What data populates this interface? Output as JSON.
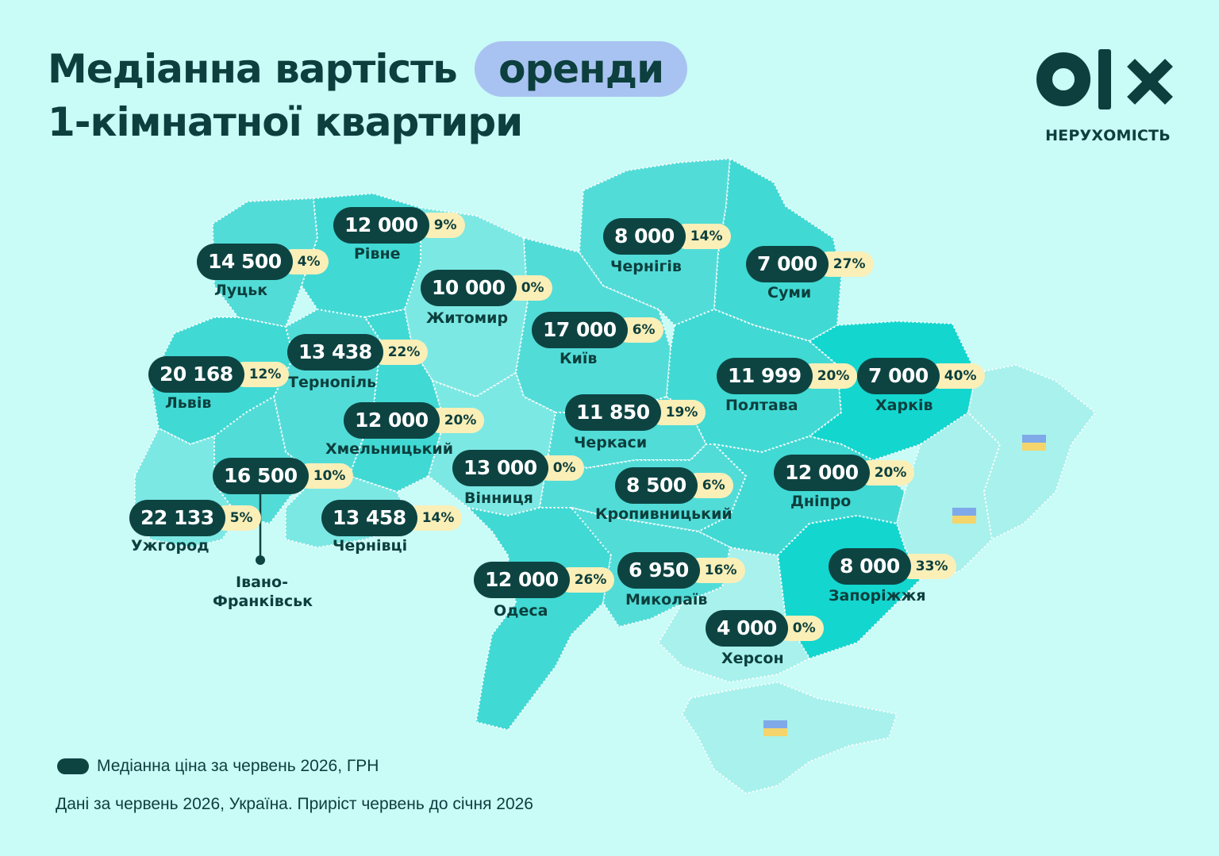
{
  "title": {
    "line1": "Медіанна вартість",
    "highlight": "оренди",
    "line2": "1-кімнатної квартири"
  },
  "logo": {
    "name": "olx-logo",
    "subtitle": "НЕРУХОМІСТЬ"
  },
  "colors": {
    "background": "#c9fbf7",
    "pill": "#0d4442",
    "pct_badge": "#fbefb8",
    "highlight": "#a8c3f1",
    "accent_text": "#0c3f3d"
  },
  "cities": [
    {
      "name": "Луцьк",
      "price": "14 500",
      "change": "4%"
    },
    {
      "name": "Рівне",
      "price": "12 000",
      "change": "9%"
    },
    {
      "name": "Житомир",
      "price": "10 000",
      "change": "0%"
    },
    {
      "name": "Київ",
      "price": "17 000",
      "change": "6%"
    },
    {
      "name": "Чернігів",
      "price": "8 000",
      "change": "14%"
    },
    {
      "name": "Суми",
      "price": "7 000",
      "change": "27%"
    },
    {
      "name": "Львів",
      "price": "20 168",
      "change": "12%"
    },
    {
      "name": "Тернопіль",
      "price": "13 438",
      "change": "22%"
    },
    {
      "name": "Хмельницький",
      "price": "12 000",
      "change": "20%"
    },
    {
      "name": "Полтава",
      "price": "11 999",
      "change": "20%"
    },
    {
      "name": "Харків",
      "price": "7 000",
      "change": "40%"
    },
    {
      "name": "Черкаси",
      "price": "11 850",
      "change": "19%"
    },
    {
      "name": "Вінниця",
      "price": "13 000",
      "change": "0%"
    },
    {
      "name": "Івано-Франківськ",
      "price": "16 500",
      "change": "10%"
    },
    {
      "name": "Ужгород",
      "price": "22 133",
      "change": "5%"
    },
    {
      "name": "Чернівці",
      "price": "13 458",
      "change": "14%"
    },
    {
      "name": "Кропивницький",
      "price": "8 500",
      "change": "6%"
    },
    {
      "name": "Дніпро",
      "price": "12 000",
      "change": "20%"
    },
    {
      "name": "Одеса",
      "price": "12 000",
      "change": "26%"
    },
    {
      "name": "Миколаїв",
      "price": "6 950",
      "change": "16%"
    },
    {
      "name": "Запоріжжя",
      "price": "8 000",
      "change": "33%"
    },
    {
      "name": "Херсон",
      "price": "4 000",
      "change": "0%"
    }
  ],
  "ivano_label": {
    "line1": "Івано-",
    "line2": "Франківськ"
  },
  "legend": {
    "label": "Медіанна ціна за червень 2026, ГРН"
  },
  "footnote": "Дані за червень 2026, Україна. Приріст червень до січня 2026"
}
